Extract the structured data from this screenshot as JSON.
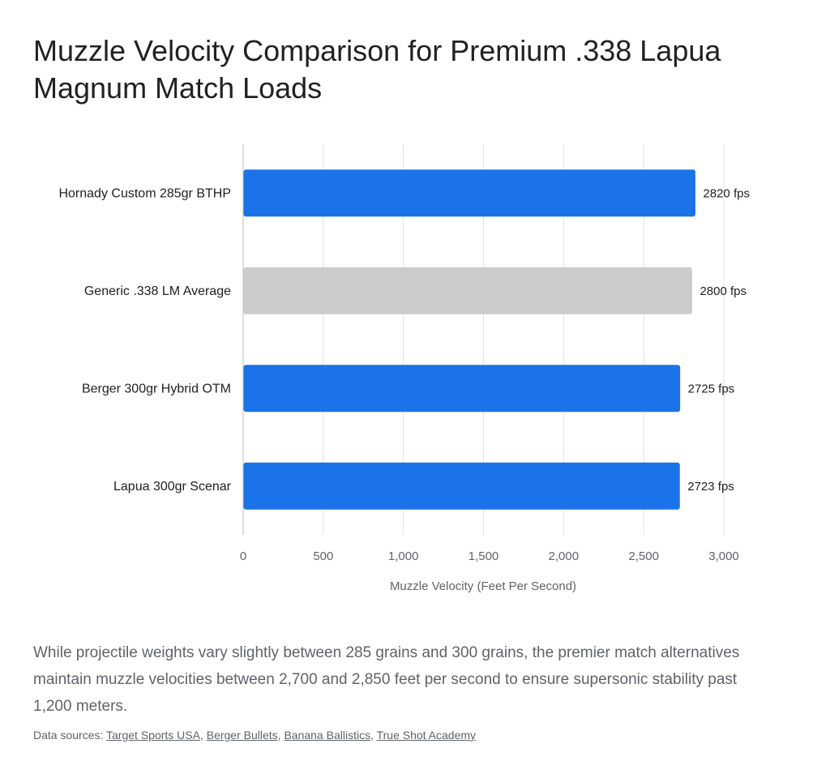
{
  "chart_data": {
    "type": "bar",
    "orientation": "horizontal",
    "title": "Muzzle Velocity Comparison for Premium .338 Lapua Magnum Match Loads",
    "categories": [
      "Hornady Custom 285gr BTHP",
      "Generic .338 LM Average",
      "Berger 300gr Hybrid OTM",
      "Lapua 300gr Scenar"
    ],
    "values": [
      2820,
      2800,
      2725,
      2723
    ],
    "data_labels": [
      "2820 fps",
      "2800 fps",
      "2725 fps",
      "2723 fps"
    ],
    "bar_colors": [
      "#1a73e8",
      "#cccccc",
      "#1a73e8",
      "#1a73e8"
    ],
    "xlabel": "Muzzle Velocity (Feet Per Second)",
    "ylabel": "",
    "xlim": [
      0,
      3000
    ],
    "xticks": [
      0,
      500,
      1000,
      1500,
      2000,
      2500,
      3000
    ],
    "xtick_labels": [
      "0",
      "500",
      "1,000",
      "1,500",
      "2,000",
      "2,500",
      "3,000"
    ],
    "grid": true,
    "legend": "none"
  },
  "description": "While projectile weights vary slightly between 285 grains and 300 grains, the premier match alternatives maintain muzzle velocities between 2,700 and 2,850 feet per second to ensure supersonic stability past 1,200 meters.",
  "sources": {
    "prefix": "Data sources: ",
    "links": [
      "Target Sports USA",
      "Berger Bullets",
      "Banana Ballistics",
      "True Shot Academy"
    ]
  }
}
